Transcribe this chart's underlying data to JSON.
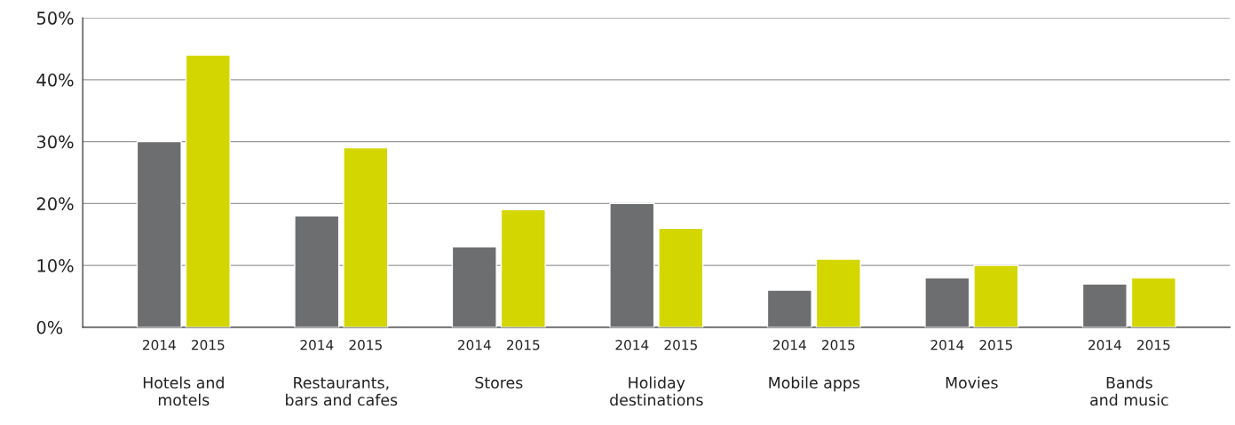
{
  "chart_data": {
    "type": "bar",
    "categories": [
      "Hotels and\nmotels",
      "Restaurants,\nbars and cafes",
      "Stores",
      "Holiday\ndestinations",
      "Mobile apps",
      "Movies",
      "Bands\nand music"
    ],
    "series": [
      {
        "name": "2014",
        "color": "#6d6e70",
        "values": [
          30,
          18,
          13,
          20,
          6,
          8,
          7
        ]
      },
      {
        "name": "2015",
        "color": "#d4d600",
        "values": [
          44,
          29,
          19,
          16,
          11,
          10,
          8
        ]
      }
    ],
    "ylim": [
      0,
      50
    ],
    "yticks": [
      {
        "value": 0,
        "label": "0%"
      },
      {
        "value": 10,
        "label": "10%"
      },
      {
        "value": 20,
        "label": "20%"
      },
      {
        "value": 30,
        "label": "30%"
      },
      {
        "value": 40,
        "label": "40%"
      },
      {
        "value": 50,
        "label": "50%"
      }
    ],
    "grid": "y",
    "legend": false
  }
}
